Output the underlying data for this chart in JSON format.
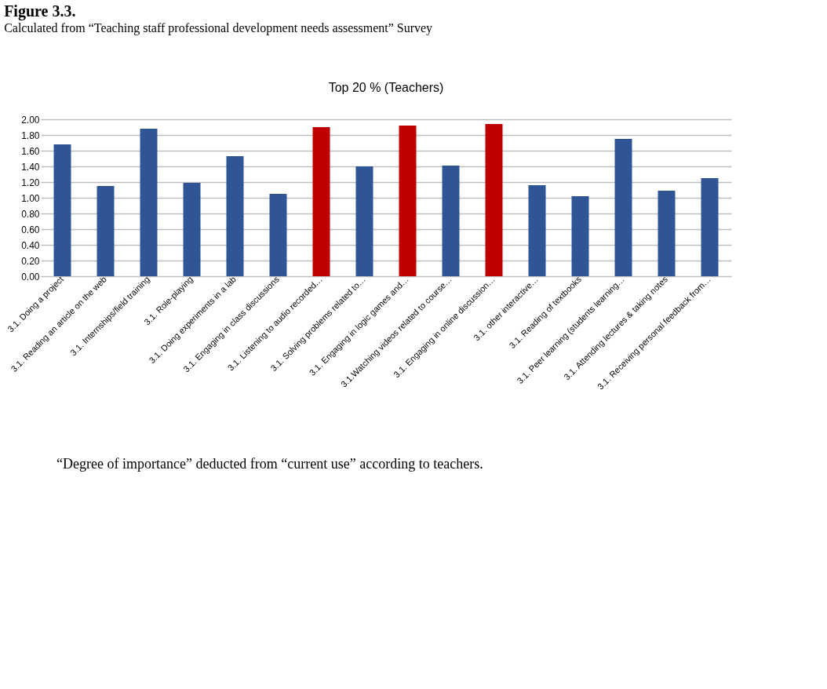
{
  "chart_data": {
    "type": "bar",
    "title": "Figure 3.3.",
    "subtitle": "Calculated from “Teaching staff professional development needs assessment” Survey",
    "annotations": [
      "Top 20 % (Teachers)",
      "“Degree of importance” deducted from “current use” according to teachers."
    ],
    "categories": [
      "3.1.  Doing a project",
      "3.1.  Reading an article on the web",
      "3.1.  Internships/field training",
      "3.1.   Role-playing",
      "3.1.   Doing experiments in a lab",
      "3.1.   Engaging in class discussions",
      "3.1.  Listening to audio recorded…",
      "3.1.  Solving problems related to…",
      "3.1.  Engaging in logic games and…",
      "3.1.Watching videos related to course…",
      "3.1. Engaging in online discussion…",
      "3.1.  other interactive…",
      "3.1. Reading of textbooks",
      "3.1.   Peer learning (students learning…",
      "3.1. Attending lectures & taking notes",
      "3.1. Receiving personal feedback from…"
    ],
    "values": [
      1.68,
      1.15,
      1.88,
      1.19,
      1.53,
      1.05,
      1.9,
      1.4,
      1.92,
      1.41,
      1.94,
      1.16,
      1.02,
      1.75,
      1.09,
      1.25
    ],
    "colors": [
      "#2f5597",
      "#2f5597",
      "#2f5597",
      "#2f5597",
      "#2f5597",
      "#2f5597",
      "#c00000",
      "#2f5597",
      "#c00000",
      "#2f5597",
      "#c00000",
      "#2f5597",
      "#2f5597",
      "#2f5597",
      "#2f5597",
      "#2f5597"
    ],
    "ylim": [
      0,
      2
    ],
    "yticks": [
      {
        "value": 0,
        "label": "0.00"
      },
      {
        "value": 0.2,
        "label": "0.20"
      },
      {
        "value": 0.4,
        "label": "0.40"
      },
      {
        "value": 0.6,
        "label": "0.60"
      },
      {
        "value": 0.8,
        "label": "0.80"
      },
      {
        "value": 1.0,
        "label": "1.00"
      },
      {
        "value": 1.2,
        "label": "1.20"
      },
      {
        "value": 1.4,
        "label": "1.40"
      },
      {
        "value": 1.6,
        "label": "1.60"
      },
      {
        "value": 1.8,
        "label": "1.80"
      },
      {
        "value": 2.0,
        "label": "2.00"
      }
    ],
    "grid": "y"
  }
}
